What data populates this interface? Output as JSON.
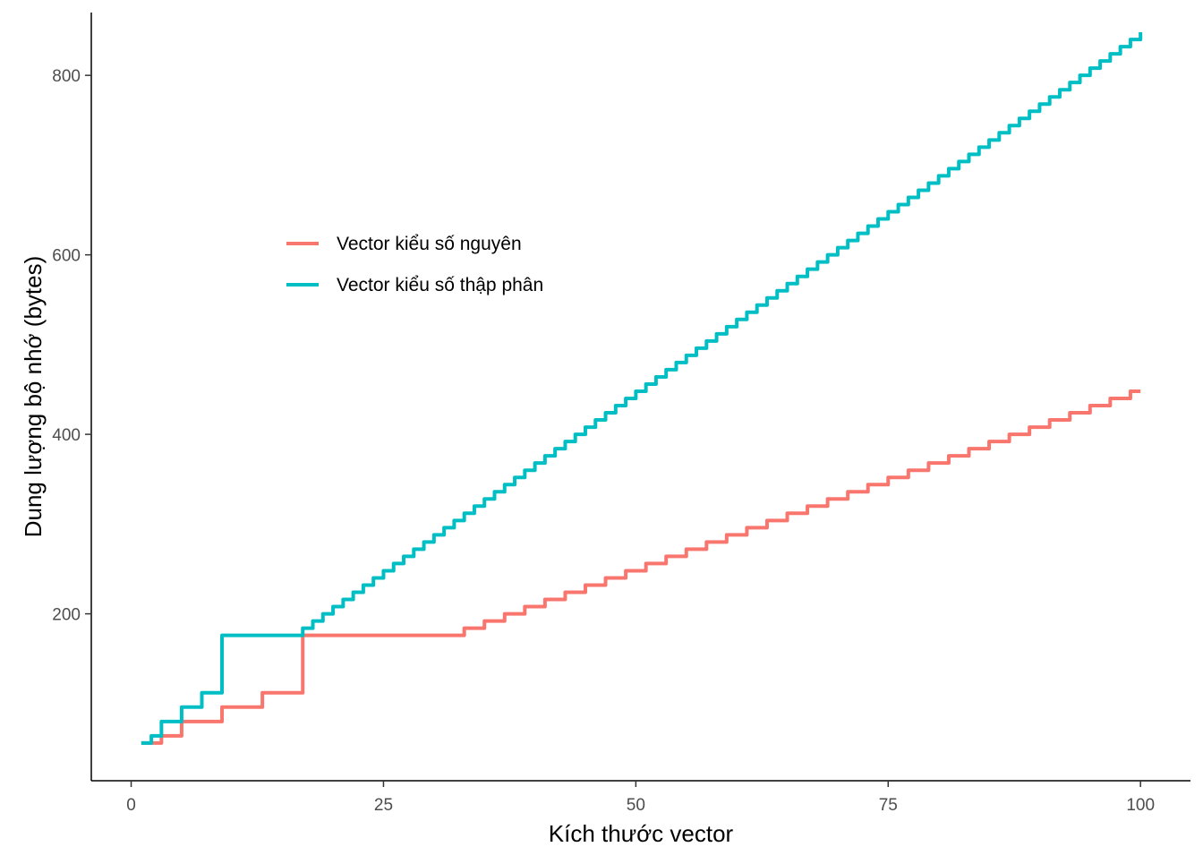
{
  "chart_data": {
    "type": "line",
    "xlabel": "Kích thước vector",
    "ylabel": "Dung lượng bộ nhớ (bytes)",
    "xlim": [
      -3.95,
      104.95
    ],
    "ylim": [
      14,
      870
    ],
    "x_ticks": [
      0,
      25,
      50,
      75,
      100
    ],
    "y_ticks": [
      200,
      400,
      600,
      800
    ],
    "x_tick_labels": [
      "0",
      "25",
      "50",
      "75",
      "100"
    ],
    "y_tick_labels": [
      "200",
      "400",
      "600",
      "800"
    ],
    "grid": false,
    "legend_position": "inside-left",
    "x": [
      1,
      2,
      3,
      4,
      5,
      6,
      7,
      8,
      9,
      10,
      11,
      12,
      13,
      14,
      15,
      16,
      17,
      18,
      19,
      20,
      21,
      22,
      23,
      24,
      25,
      26,
      27,
      28,
      29,
      30,
      31,
      32,
      33,
      34,
      35,
      36,
      37,
      38,
      39,
      40,
      41,
      42,
      43,
      44,
      45,
      46,
      47,
      48,
      49,
      50,
      51,
      52,
      53,
      54,
      55,
      56,
      57,
      58,
      59,
      60,
      61,
      62,
      63,
      64,
      65,
      66,
      67,
      68,
      69,
      70,
      71,
      72,
      73,
      74,
      75,
      76,
      77,
      78,
      79,
      80,
      81,
      82,
      83,
      84,
      85,
      86,
      87,
      88,
      89,
      90,
      91,
      92,
      93,
      94,
      95,
      96,
      97,
      98,
      99,
      100
    ],
    "series": [
      {
        "name": "Vector kiểu số nguyên",
        "color": "#F8766D",
        "values": [
          56,
          56,
          64,
          64,
          80,
          80,
          80,
          80,
          96,
          96,
          96,
          96,
          112,
          112,
          112,
          112,
          176,
          176,
          176,
          176,
          176,
          176,
          176,
          176,
          176,
          176,
          176,
          176,
          176,
          176,
          176,
          176,
          184,
          184,
          192,
          192,
          200,
          200,
          208,
          208,
          216,
          216,
          224,
          224,
          232,
          232,
          240,
          240,
          248,
          248,
          256,
          256,
          264,
          264,
          272,
          272,
          280,
          280,
          288,
          288,
          296,
          296,
          304,
          304,
          312,
          312,
          320,
          320,
          328,
          328,
          336,
          336,
          344,
          344,
          352,
          352,
          360,
          360,
          368,
          368,
          376,
          376,
          384,
          384,
          392,
          392,
          400,
          400,
          408,
          408,
          416,
          416,
          424,
          424,
          432,
          432,
          440,
          440,
          448,
          448
        ]
      },
      {
        "name": "Vector kiểu số thập phân",
        "color": "#00BFC4",
        "values": [
          56,
          64,
          80,
          80,
          96,
          96,
          112,
          112,
          176,
          176,
          176,
          176,
          176,
          176,
          176,
          176,
          184,
          192,
          200,
          208,
          216,
          224,
          232,
          240,
          248,
          256,
          264,
          272,
          280,
          288,
          296,
          304,
          312,
          320,
          328,
          336,
          344,
          352,
          360,
          368,
          376,
          384,
          392,
          400,
          408,
          416,
          424,
          432,
          440,
          448,
          456,
          464,
          472,
          480,
          488,
          496,
          504,
          512,
          520,
          528,
          536,
          544,
          552,
          560,
          568,
          576,
          584,
          592,
          600,
          608,
          616,
          624,
          632,
          640,
          648,
          656,
          664,
          672,
          680,
          688,
          696,
          704,
          712,
          720,
          728,
          736,
          744,
          752,
          760,
          768,
          776,
          784,
          792,
          800,
          808,
          816,
          824,
          832,
          840,
          848
        ]
      }
    ]
  }
}
